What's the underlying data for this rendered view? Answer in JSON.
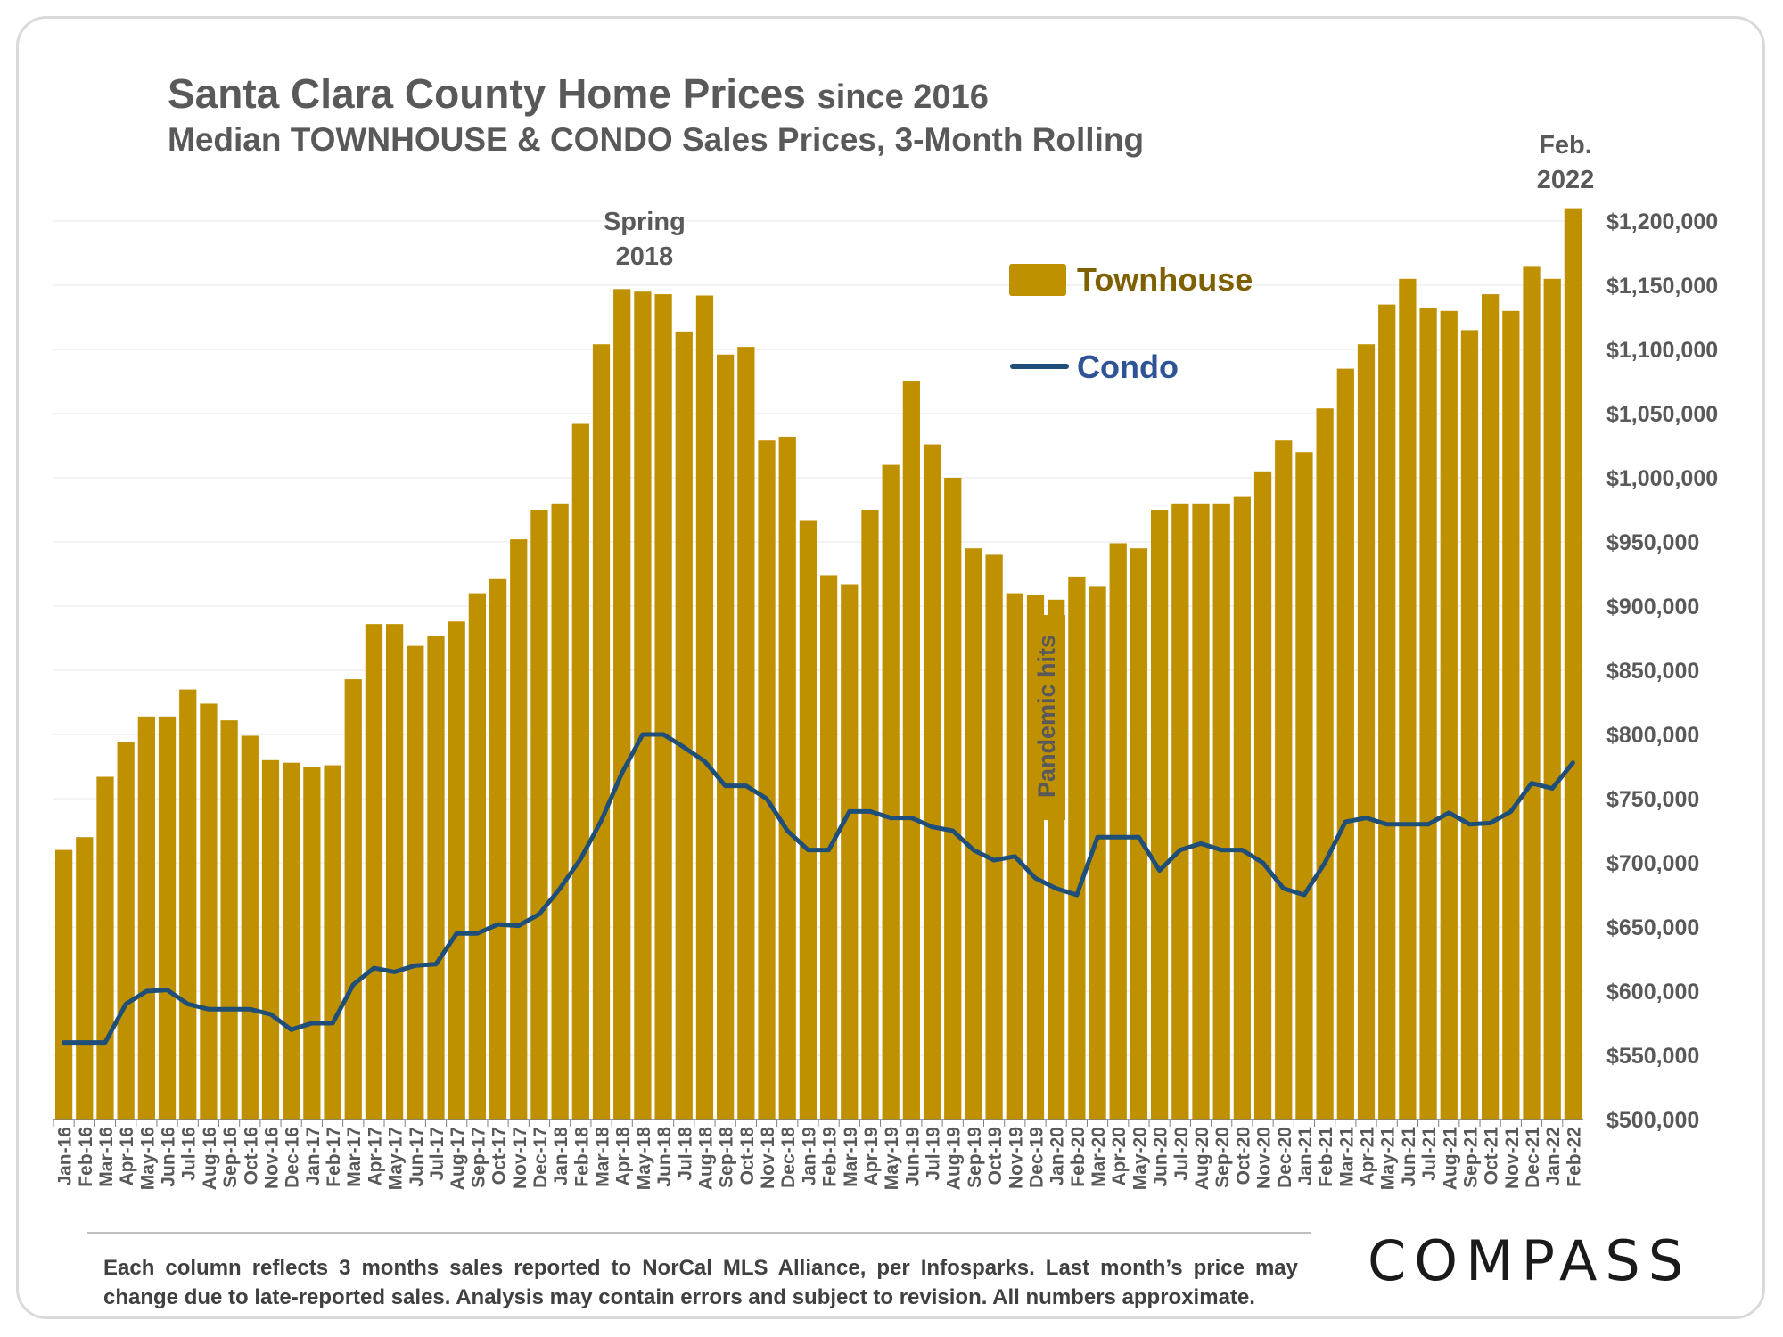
{
  "header": {
    "title_main": "Santa Clara County Home Prices",
    "title_since": "since 2016",
    "subtitle": "Median TOWNHOUSE & CONDO Sales Prices, 3-Month Rolling"
  },
  "footnote": "Each column reflects 3 months sales reported to NorCal MLS Alliance, per Infosparks. Last month’s price may change due to late-reported sales. Analysis may contain errors and subject to revision. All numbers approximate.",
  "brand": {
    "logo_text": "COMPASS"
  },
  "colors": {
    "townhouse": "#BF9000",
    "condo": "#1F4E79",
    "text": "#595959",
    "townhouse_label": "#7F6000",
    "condo_label": "#2F5496"
  },
  "chart_data": {
    "type": "bar",
    "ylim": [
      500000,
      1200000
    ],
    "yticks": [
      500000,
      550000,
      600000,
      650000,
      700000,
      750000,
      800000,
      850000,
      900000,
      950000,
      1000000,
      1050000,
      1100000,
      1150000,
      1200000
    ],
    "ytick_labels": [
      "$500,000",
      "$550,000",
      "$600,000",
      "$650,000",
      "$700,000",
      "$750,000",
      "$800,000",
      "$850,000",
      "$900,000",
      "$950,000",
      "$1,000,000",
      "$1,050,000",
      "$1,100,000",
      "$1,150,000",
      "$1,200,000"
    ],
    "y_axis_side": "right",
    "grid": true,
    "legend": "top-center",
    "categories": [
      "Jan-16",
      "Feb-16",
      "Mar-16",
      "Apr-16",
      "May-16",
      "Jun-16",
      "Jul-16",
      "Aug-16",
      "Sep-16",
      "Oct-16",
      "Nov-16",
      "Dec-16",
      "Jan-17",
      "Feb-17",
      "Mar-17",
      "Apr-17",
      "May-17",
      "Jun-17",
      "Jul-17",
      "Aug-17",
      "Sep-17",
      "Oct-17",
      "Nov-17",
      "Dec-17",
      "Jan-18",
      "Feb-18",
      "Mar-18",
      "Apr-18",
      "May-18",
      "Jun-18",
      "Jul-18",
      "Aug-18",
      "Sep-18",
      "Oct-18",
      "Nov-18",
      "Dec-18",
      "Jan-19",
      "Feb-19",
      "Mar-19",
      "Apr-19",
      "May-19",
      "Jun-19",
      "Jul-19",
      "Aug-19",
      "Sep-19",
      "Oct-19",
      "Nov-19",
      "Dec-19",
      "Jan-20",
      "Feb-20",
      "Mar-20",
      "Apr-20",
      "May-20",
      "Jun-20",
      "Jul-20",
      "Aug-20",
      "Sep-20",
      "Oct-20",
      "Nov-20",
      "Dec-20",
      "Jan-21",
      "Feb-21",
      "Mar-21",
      "Apr-21",
      "May-21",
      "Jun-21",
      "Jul-21",
      "Aug-21",
      "Sep-21",
      "Oct-21",
      "Nov-21",
      "Dec-21",
      "Jan-22",
      "Feb-22"
    ],
    "series": [
      {
        "name": "Townhouse",
        "kind": "bar",
        "values": [
          710000,
          720000,
          767000,
          794000,
          814000,
          814000,
          835000,
          824000,
          811000,
          799000,
          780000,
          778000,
          775000,
          776000,
          843000,
          886000,
          886000,
          869000,
          877000,
          888000,
          910000,
          921000,
          952000,
          975000,
          980000,
          1042000,
          1104000,
          1147000,
          1145000,
          1143000,
          1114000,
          1142000,
          1096000,
          1102000,
          1029000,
          1032000,
          967000,
          924000,
          917000,
          975000,
          1010000,
          1075000,
          1026000,
          1000000,
          945000,
          940000,
          910000,
          909000,
          905000,
          923000,
          915000,
          949000,
          945000,
          975000,
          980000,
          980000,
          980000,
          985000,
          1005000,
          1029000,
          1020000,
          1054000,
          1085000,
          1104000,
          1135000,
          1155000,
          1132000,
          1130000,
          1115000,
          1143000,
          1130000,
          1165000,
          1155000,
          1210000
        ]
      },
      {
        "name": "Condo",
        "kind": "line",
        "values": [
          560000,
          560000,
          560000,
          590000,
          600000,
          601000,
          590000,
          586000,
          586000,
          586000,
          582000,
          570000,
          575000,
          575000,
          605000,
          618000,
          615000,
          620000,
          621000,
          645000,
          645000,
          652000,
          651000,
          660000,
          680000,
          703000,
          733000,
          770000,
          800000,
          800000,
          790000,
          779000,
          760000,
          760000,
          750000,
          725000,
          710000,
          710000,
          740000,
          740000,
          735000,
          735000,
          728000,
          725000,
          710000,
          702000,
          705000,
          688000,
          680000,
          675000,
          720000,
          720000,
          720000,
          694000,
          710000,
          715000,
          710000,
          710000,
          700000,
          680000,
          675000,
          700000,
          732000,
          735000,
          730000,
          730000,
          730000,
          739000,
          730000,
          731000,
          740000,
          762000,
          758000,
          778000
        ]
      }
    ],
    "annotations": [
      {
        "text": "Spring\n2018",
        "category": "May-18"
      },
      {
        "text": "Feb.\n2022",
        "category": "Feb-22"
      },
      {
        "text": "Pandemic hits",
        "category": "Mar-20",
        "orientation": "vertical"
      }
    ]
  }
}
